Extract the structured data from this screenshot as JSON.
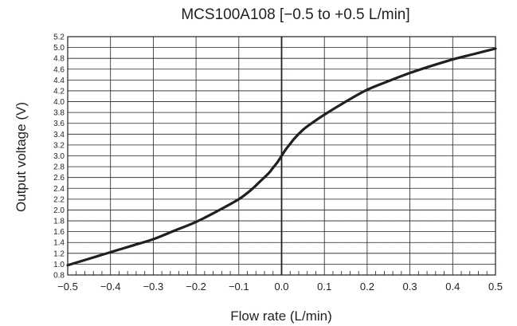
{
  "chart_data": {
    "type": "line",
    "title": "MCS100A108 [−0.5 to +0.5 L/min]",
    "xlabel": "Flow rate (L/min)",
    "ylabel": "Output voltage (V)",
    "xlim": [
      -0.5,
      0.5
    ],
    "ylim": [
      0.8,
      5.2
    ],
    "grid": true,
    "x_ticks": [
      -0.5,
      -0.4,
      -0.3,
      -0.2,
      -0.1,
      0.0,
      0.1,
      0.2,
      0.3,
      0.4,
      0.5
    ],
    "x_tick_labels": [
      "−0.5",
      "−0.4",
      "−0.3",
      "−0.2",
      "−0.1",
      "0.0",
      "0.1",
      "0.2",
      "0.3",
      "0.4",
      "0.5"
    ],
    "y_ticks": [
      0.8,
      1.0,
      1.2,
      1.4,
      1.6,
      1.8,
      2.0,
      2.2,
      2.4,
      2.6,
      2.8,
      3.0,
      3.2,
      3.4,
      3.6,
      3.8,
      4.0,
      4.2,
      4.4,
      4.6,
      4.8,
      5.0,
      5.2
    ],
    "y_tick_labels": [
      "0.8",
      "1.0",
      "1.2",
      "1.4",
      "1.6",
      "1.8",
      "2.0",
      "2.2",
      "2.4",
      "2.6",
      "2.8",
      "3.0",
      "3.2",
      "3.4",
      "3.6",
      "3.8",
      "4.0",
      "4.2",
      "4.4",
      "4.6",
      "4.8",
      "5.0",
      "5.2"
    ],
    "series": [
      {
        "x": [
          -0.5,
          -0.45,
          -0.4,
          -0.35,
          -0.3,
          -0.25,
          -0.2,
          -0.15,
          -0.1,
          -0.07,
          -0.05,
          -0.03,
          -0.02,
          -0.01,
          0.0,
          0.01,
          0.02,
          0.03,
          0.05,
          0.07,
          0.1,
          0.15,
          0.2,
          0.25,
          0.3,
          0.35,
          0.4,
          0.45,
          0.5
        ],
        "y": [
          0.98,
          1.1,
          1.22,
          1.34,
          1.46,
          1.62,
          1.78,
          1.98,
          2.2,
          2.38,
          2.53,
          2.68,
          2.78,
          2.88,
          3.0,
          3.12,
          3.22,
          3.32,
          3.48,
          3.6,
          3.76,
          4.0,
          4.22,
          4.38,
          4.53,
          4.66,
          4.78,
          4.88,
          4.98
        ]
      }
    ]
  }
}
